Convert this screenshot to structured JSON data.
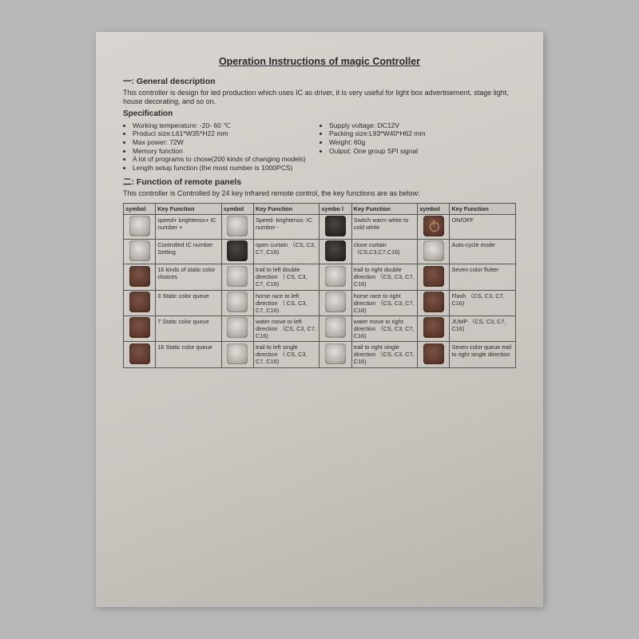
{
  "title": "Operation Instructions of magic Controller",
  "section1": {
    "heading": "一: General description",
    "intro": "This controller is design for led production which uses IC as driver, it is very useful for light box advertisement, stage light, house decorating, and so on.",
    "spec_label": "Specification",
    "left": [
      "Working temperature: -20- 60 ℃",
      "Product size:L61*W35*H22 mm",
      "Max power: 72W",
      "Memory function"
    ],
    "right": [
      "Supply voltage: DC12V",
      "Packing size:L93*W40*H62 mm",
      "Weight: 60g",
      "Output: One group SPI signal"
    ],
    "full": [
      "A lot of programs to chose(200 kinds of changing models)",
      "Length setup function (the most number is 1000PCS)"
    ]
  },
  "section2": {
    "heading": "二: Function of remote panels",
    "intro": "This controller is Controlled by 24 key infrared remote control, the key functions are as below:"
  },
  "table": {
    "headers": [
      "symbol",
      "Key Function",
      "symbol",
      "Key Function",
      "symbo l",
      "Key Function",
      "symbol",
      "Key Function"
    ],
    "rows": [
      [
        {
          "c": "grey"
        },
        "speed+ brightenss+ IC number +",
        {
          "c": "grey"
        },
        "Speed- brightenss- IC number -",
        {
          "c": "dark"
        },
        "Switch warm white to cold white",
        {
          "c": "brown",
          "power": true
        },
        "ON/OFF"
      ],
      [
        {
          "c": "grey"
        },
        "Controlled IC number Setting",
        {
          "c": "dark"
        },
        "open curtain （CS, C3, C7, C16)",
        {
          "c": "dark"
        },
        "close curtain （CS,C3,C7,C16)",
        {
          "c": "grey"
        },
        "Auto-cycle mode"
      ],
      [
        {
          "c": "brown"
        },
        "16 kinds of static color choices",
        {
          "c": "grey"
        },
        "trail to left double direction （ CS, C3, C7, C16)",
        {
          "c": "grey"
        },
        "trail to right double direction （CS, C3, C7, C16)",
        {
          "c": "brown"
        },
        "Seven color flutter"
      ],
      [
        {
          "c": "brown"
        },
        "3 Static color queue",
        {
          "c": "grey"
        },
        "horse race to left direction （ CS, C3, C7, C16)",
        {
          "c": "grey"
        },
        "horse race to right direction （CS, C3, C7, C16)",
        {
          "c": "brown"
        },
        "Flash （CS, C3, C7, C16)"
      ],
      [
        {
          "c": "brown"
        },
        "7 Static color queue",
        {
          "c": "grey"
        },
        "water move to left direction （CS, C3, C7, C16)",
        {
          "c": "grey"
        },
        "water move to right direction （CS, C3, C7, C16)",
        {
          "c": "brown"
        },
        "JUMP （CS, C3, C7, C16)"
      ],
      [
        {
          "c": "brown"
        },
        "16 Static color queue",
        {
          "c": "grey"
        },
        "trail to left single direction （ CS, C3, C7, C16)",
        {
          "c": "grey"
        },
        "trail to right single direction （CS, C3, C7, C16)",
        {
          "c": "brown"
        },
        "Seven color queue trail to right single direction"
      ]
    ]
  }
}
